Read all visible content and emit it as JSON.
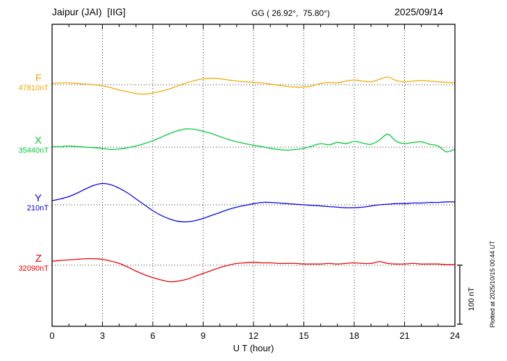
{
  "header": {
    "station": "Jaipur (JAI)  [IIG]",
    "coords": "GG ( 26.92°,  75.80°)",
    "date": "2025/09/14"
  },
  "side": {
    "plotted_at": "Plotted at 2025/10/15 00:44 UT",
    "scale_label": "100 nT"
  },
  "chart_data": {
    "type": "line",
    "title": "Jaipur (JAI) [IIG] magnetogram 2025/09/14",
    "xlabel": "U T (hour)",
    "ylabel": "",
    "x_range": [
      0,
      24
    ],
    "x_ticks": [
      0,
      3,
      6,
      9,
      12,
      15,
      18,
      21,
      24
    ],
    "x_step_hours": 0.5,
    "grid": "dotted vertical at 3-hour ticks, dotted horizontal at each component baseline",
    "scale_bar_nT": 100,
    "series": [
      {
        "name": "F",
        "baseline": "47810nT",
        "color": "#f5a800",
        "offsets_nT": [
          2,
          3,
          3,
          2,
          1,
          0,
          -2,
          -5,
          -9,
          -12,
          -15,
          -16,
          -14,
          -11,
          -7,
          -2,
          3,
          7,
          10,
          11,
          10,
          8,
          6,
          5,
          4,
          3,
          1,
          -1,
          -3,
          -4,
          -4,
          -2,
          2,
          4,
          3,
          6,
          8,
          6,
          5,
          9,
          13,
          7,
          5,
          6,
          7,
          6,
          5,
          4,
          3
        ]
      },
      {
        "name": "X",
        "baseline": "35440nT",
        "color": "#00cc33",
        "offsets_nT": [
          1,
          1,
          2,
          1,
          0,
          -1,
          -2,
          -4,
          -3,
          -1,
          2,
          6,
          11,
          17,
          23,
          28,
          31,
          30,
          27,
          23,
          18,
          13,
          9,
          6,
          3,
          1,
          -2,
          -4,
          -5,
          -4,
          -2,
          2,
          6,
          4,
          8,
          6,
          10,
          7,
          5,
          12,
          22,
          10,
          6,
          8,
          9,
          5,
          2,
          -8,
          -3
        ]
      },
      {
        "name": "Y",
        "baseline": "210nT",
        "color": "#0000ee",
        "offsets_nT": [
          7,
          10,
          14,
          20,
          27,
          33,
          36,
          34,
          28,
          20,
          10,
          0,
          -10,
          -18,
          -24,
          -28,
          -29,
          -27,
          -23,
          -18,
          -13,
          -8,
          -4,
          -1,
          2,
          4,
          4,
          3,
          2,
          1,
          0,
          -1,
          -2,
          -3,
          -4,
          -5,
          -5,
          -4,
          -2,
          0,
          1,
          2,
          2,
          3,
          3,
          4,
          4,
          5,
          5
        ]
      },
      {
        "name": "Z",
        "baseline": "32090nT",
        "color": "#ee0000",
        "offsets_nT": [
          7,
          8,
          9,
          10,
          11,
          11,
          10,
          7,
          3,
          -3,
          -10,
          -16,
          -21,
          -25,
          -28,
          -27,
          -24,
          -19,
          -14,
          -9,
          -4,
          0,
          3,
          4,
          5,
          4,
          4,
          3,
          3,
          3,
          2,
          2,
          2,
          3,
          2,
          3,
          4,
          3,
          3,
          6,
          3,
          2,
          2,
          3,
          2,
          2,
          2,
          1,
          1
        ]
      }
    ]
  }
}
